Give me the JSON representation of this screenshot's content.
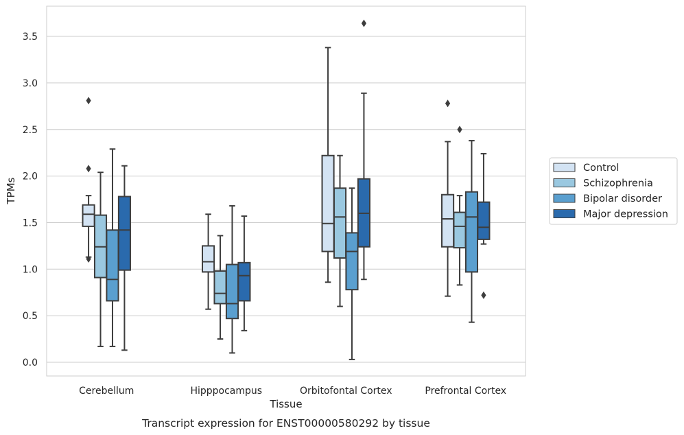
{
  "chart_data": {
    "type": "box",
    "title": "",
    "caption": "Transcript expression for ENST00000580292 by tissue",
    "xlabel": "Tissue",
    "ylabel": "TPMs",
    "ylim": [
      -0.15,
      3.85
    ],
    "yticks": [
      0.0,
      0.5,
      1.0,
      1.5,
      2.0,
      2.5,
      3.0,
      3.5
    ],
    "ytick_labels": [
      "0.0",
      "0.5",
      "1.0",
      "1.5",
      "2.0",
      "2.5",
      "3.0",
      "3.5"
    ],
    "grid": true,
    "legend_position": "right",
    "categories": [
      "Cerebellum",
      "Hipppocampus",
      "Orbitofontal Cortex",
      "Prefrontal Cortex"
    ],
    "series": [
      {
        "name": "Control",
        "color": "#d3e3f3",
        "boxes": [
          {
            "whisker_low": 1.13,
            "q1": 1.46,
            "median": 1.59,
            "q3": 1.69,
            "whisker_high": 1.79,
            "outliers": [
              2.81,
              2.08,
              1.11
            ]
          },
          {
            "whisker_low": 0.57,
            "q1": 0.97,
            "median": 1.08,
            "q3": 1.25,
            "whisker_high": 1.59,
            "outliers": []
          },
          {
            "whisker_low": 0.86,
            "q1": 1.19,
            "median": 1.49,
            "q3": 2.22,
            "whisker_high": 3.38,
            "outliers": []
          },
          {
            "whisker_low": 0.71,
            "q1": 1.24,
            "median": 1.54,
            "q3": 1.8,
            "whisker_high": 2.37,
            "outliers": [
              2.78
            ]
          }
        ]
      },
      {
        "name": "Schizophrenia",
        "color": "#9ac8e0",
        "boxes": [
          {
            "whisker_low": 0.17,
            "q1": 0.91,
            "median": 1.24,
            "q3": 1.58,
            "whisker_high": 2.04,
            "outliers": []
          },
          {
            "whisker_low": 0.25,
            "q1": 0.63,
            "median": 0.74,
            "q3": 0.98,
            "whisker_high": 1.36,
            "outliers": []
          },
          {
            "whisker_low": 0.6,
            "q1": 1.12,
            "median": 1.56,
            "q3": 1.87,
            "whisker_high": 2.22,
            "outliers": []
          },
          {
            "whisker_low": 0.83,
            "q1": 1.23,
            "median": 1.46,
            "q3": 1.61,
            "whisker_high": 1.79,
            "outliers": [
              2.5
            ]
          }
        ]
      },
      {
        "name": "Bipolar disorder",
        "color": "#5a9fcf",
        "boxes": [
          {
            "whisker_low": 0.17,
            "q1": 0.66,
            "median": 0.89,
            "q3": 1.42,
            "whisker_high": 2.29,
            "outliers": []
          },
          {
            "whisker_low": 0.1,
            "q1": 0.47,
            "median": 0.63,
            "q3": 1.05,
            "whisker_high": 1.68,
            "outliers": []
          },
          {
            "whisker_low": 0.03,
            "q1": 0.78,
            "median": 1.19,
            "q3": 1.39,
            "whisker_high": 1.87,
            "outliers": []
          },
          {
            "whisker_low": 0.43,
            "q1": 0.97,
            "median": 1.56,
            "q3": 1.83,
            "whisker_high": 2.38,
            "outliers": []
          }
        ]
      },
      {
        "name": "Major depression",
        "color": "#2a6aad",
        "boxes": [
          {
            "whisker_low": 0.13,
            "q1": 0.99,
            "median": 1.42,
            "q3": 1.78,
            "whisker_high": 2.11,
            "outliers": []
          },
          {
            "whisker_low": 0.34,
            "q1": 0.66,
            "median": 0.93,
            "q3": 1.07,
            "whisker_high": 1.57,
            "outliers": []
          },
          {
            "whisker_low": 0.89,
            "q1": 1.24,
            "median": 1.6,
            "q3": 1.97,
            "whisker_high": 2.89,
            "outliers": [
              3.64
            ]
          },
          {
            "whisker_low": 1.27,
            "q1": 1.32,
            "median": 1.45,
            "q3": 1.72,
            "whisker_high": 2.24,
            "outliers": [
              0.72
            ]
          }
        ]
      }
    ]
  },
  "colors": {
    "grid": "#cccccc",
    "frame": "#cccccc",
    "stroke": "#3d3d3d"
  }
}
